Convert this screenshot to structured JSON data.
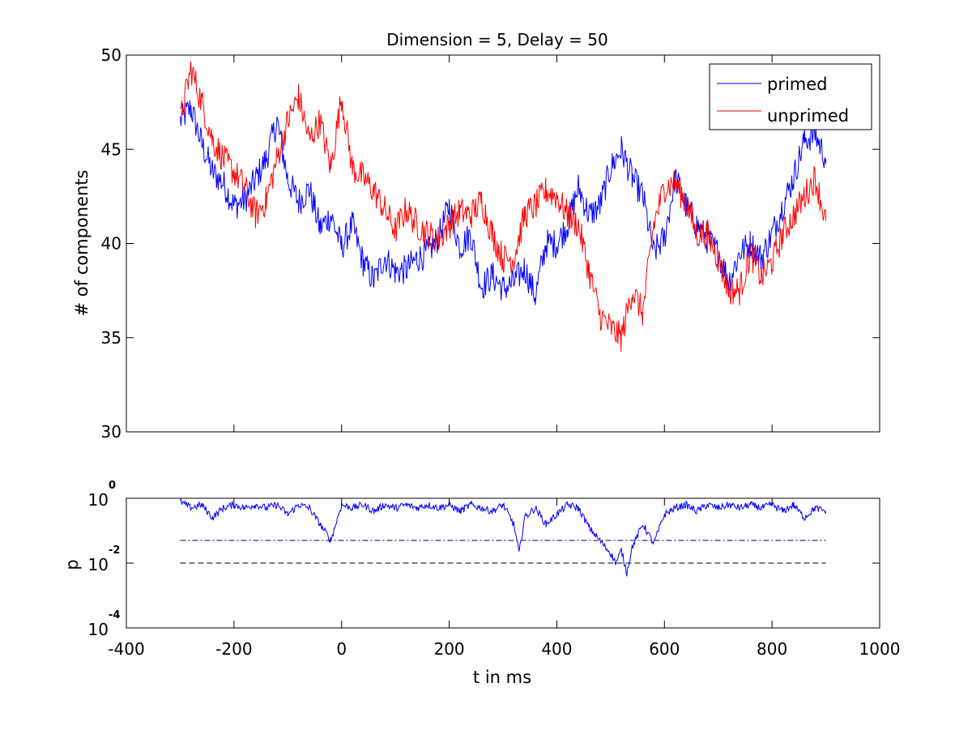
{
  "chart_data": [
    {
      "type": "line",
      "title": "Dimension  = 5, Delay = 50",
      "xlabel": "",
      "ylabel": "# of components",
      "xlim": [
        -400,
        1000
      ],
      "ylim": [
        30,
        50
      ],
      "yticks": [
        "30",
        "35",
        "40",
        "45",
        "50"
      ],
      "grid": false,
      "legend_position": "top-right",
      "series": [
        {
          "name": "primed",
          "color": "#0000ff",
          "x": [
            -300,
            -280,
            -260,
            -240,
            -220,
            -200,
            -180,
            -160,
            -140,
            -120,
            -100,
            -80,
            -60,
            -40,
            -20,
            0,
            20,
            40,
            60,
            80,
            100,
            120,
            140,
            160,
            180,
            200,
            220,
            240,
            260,
            280,
            300,
            320,
            340,
            360,
            380,
            400,
            420,
            440,
            460,
            480,
            500,
            520,
            540,
            560,
            580,
            600,
            620,
            640,
            660,
            680,
            700,
            720,
            740,
            760,
            780,
            800,
            820,
            840,
            860,
            880,
            900
          ],
          "y": [
            46.5,
            47.2,
            45.3,
            43.8,
            43.2,
            42.0,
            42.3,
            43.4,
            44.5,
            46.5,
            43.4,
            42.2,
            42.9,
            40.8,
            41.5,
            39.8,
            41.0,
            39.0,
            38.0,
            39.3,
            38.5,
            38.6,
            39.2,
            39.5,
            40.3,
            42.0,
            39.8,
            40.5,
            37.7,
            38.3,
            37.6,
            37.9,
            38.7,
            37.2,
            40.0,
            40.0,
            41.0,
            43.0,
            41.5,
            42.0,
            44.0,
            45.0,
            43.5,
            42.5,
            39.5,
            40.3,
            43.5,
            42.0,
            41.0,
            40.2,
            39.5,
            38.0,
            39.5,
            40.0,
            39.2,
            40.5,
            42.0,
            43.5,
            45.5,
            45.8,
            44.5
          ]
        },
        {
          "name": "unprimed",
          "color": "#ff0000",
          "x": [
            -300,
            -280,
            -260,
            -240,
            -220,
            -200,
            -180,
            -160,
            -140,
            -120,
            -100,
            -80,
            -60,
            -40,
            -20,
            0,
            20,
            40,
            60,
            80,
            100,
            120,
            140,
            160,
            180,
            200,
            220,
            240,
            260,
            280,
            300,
            320,
            340,
            360,
            380,
            400,
            420,
            440,
            460,
            480,
            500,
            520,
            540,
            560,
            580,
            600,
            620,
            640,
            660,
            680,
            700,
            720,
            740,
            760,
            780,
            800,
            820,
            840,
            860,
            880,
            900
          ],
          "y": [
            46.5,
            49.3,
            47.5,
            45.5,
            44.5,
            43.8,
            43.0,
            41.5,
            42.3,
            44.5,
            46.5,
            47.8,
            45.5,
            46.5,
            44.0,
            47.8,
            44.0,
            43.5,
            42.8,
            41.8,
            40.7,
            41.8,
            41.0,
            40.5,
            40.2,
            41.0,
            41.7,
            41.5,
            42.3,
            40.5,
            39.2,
            39.2,
            41.5,
            42.0,
            42.8,
            42.5,
            41.5,
            41.0,
            38.5,
            36.2,
            35.5,
            35.0,
            37.5,
            36.3,
            41.0,
            43.0,
            43.2,
            42.2,
            40.5,
            40.5,
            39.2,
            37.5,
            37.5,
            39.5,
            38.2,
            39.0,
            40.5,
            41.5,
            42.5,
            43.5,
            41.2
          ]
        }
      ]
    },
    {
      "type": "line",
      "title": "",
      "xlabel": "t in ms",
      "ylabel": "p",
      "xlim": [
        -400,
        1000
      ],
      "xticks": [
        "-400",
        "-200",
        "0",
        "200",
        "400",
        "600",
        "800",
        "1000"
      ],
      "yscale": "log",
      "ylim_exponents": [
        -4,
        0
      ],
      "ytick_base": "10",
      "ytick_exponents": [
        "-4",
        "-2",
        "0"
      ],
      "grid": false,
      "series": [
        {
          "color": "#0000ff",
          "x": [
            -300,
            -280,
            -260,
            -240,
            -220,
            -200,
            -180,
            -160,
            -140,
            -120,
            -100,
            -80,
            -60,
            -40,
            -20,
            0,
            20,
            40,
            60,
            80,
            100,
            120,
            140,
            160,
            180,
            200,
            220,
            240,
            260,
            280,
            300,
            320,
            330,
            340,
            360,
            380,
            400,
            420,
            440,
            460,
            480,
            500,
            510,
            520,
            530,
            540,
            560,
            580,
            600,
            620,
            640,
            660,
            680,
            700,
            720,
            740,
            760,
            780,
            800,
            820,
            840,
            860,
            880,
            900
          ],
          "log10_y": [
            -0.1,
            -0.3,
            -0.2,
            -0.6,
            -0.3,
            -0.2,
            -0.3,
            -0.2,
            -0.3,
            -0.2,
            -0.5,
            -0.2,
            -0.3,
            -0.8,
            -1.3,
            -0.2,
            -0.3,
            -0.2,
            -0.4,
            -0.2,
            -0.3,
            -0.2,
            -0.3,
            -0.2,
            -0.3,
            -0.2,
            -0.4,
            -0.2,
            -0.3,
            -0.4,
            -0.2,
            -0.8,
            -1.7,
            -0.6,
            -0.3,
            -0.8,
            -0.5,
            -0.2,
            -0.3,
            -0.9,
            -1.3,
            -1.7,
            -2.0,
            -1.6,
            -2.3,
            -1.5,
            -0.8,
            -1.4,
            -0.5,
            -0.3,
            -0.2,
            -0.4,
            -0.2,
            -0.3,
            -0.2,
            -0.3,
            -0.2,
            -0.3,
            -0.2,
            -0.4,
            -0.2,
            -0.6,
            -0.3,
            -0.4
          ]
        },
        {
          "style": "dash-dot",
          "color": "#000080",
          "x": [
            -300,
            900
          ],
          "log10_y": [
            -1.301,
            -1.301
          ]
        },
        {
          "style": "dashed",
          "color": "#000000",
          "x": [
            -300,
            900
          ],
          "log10_y": [
            -2,
            -2
          ]
        }
      ]
    }
  ]
}
